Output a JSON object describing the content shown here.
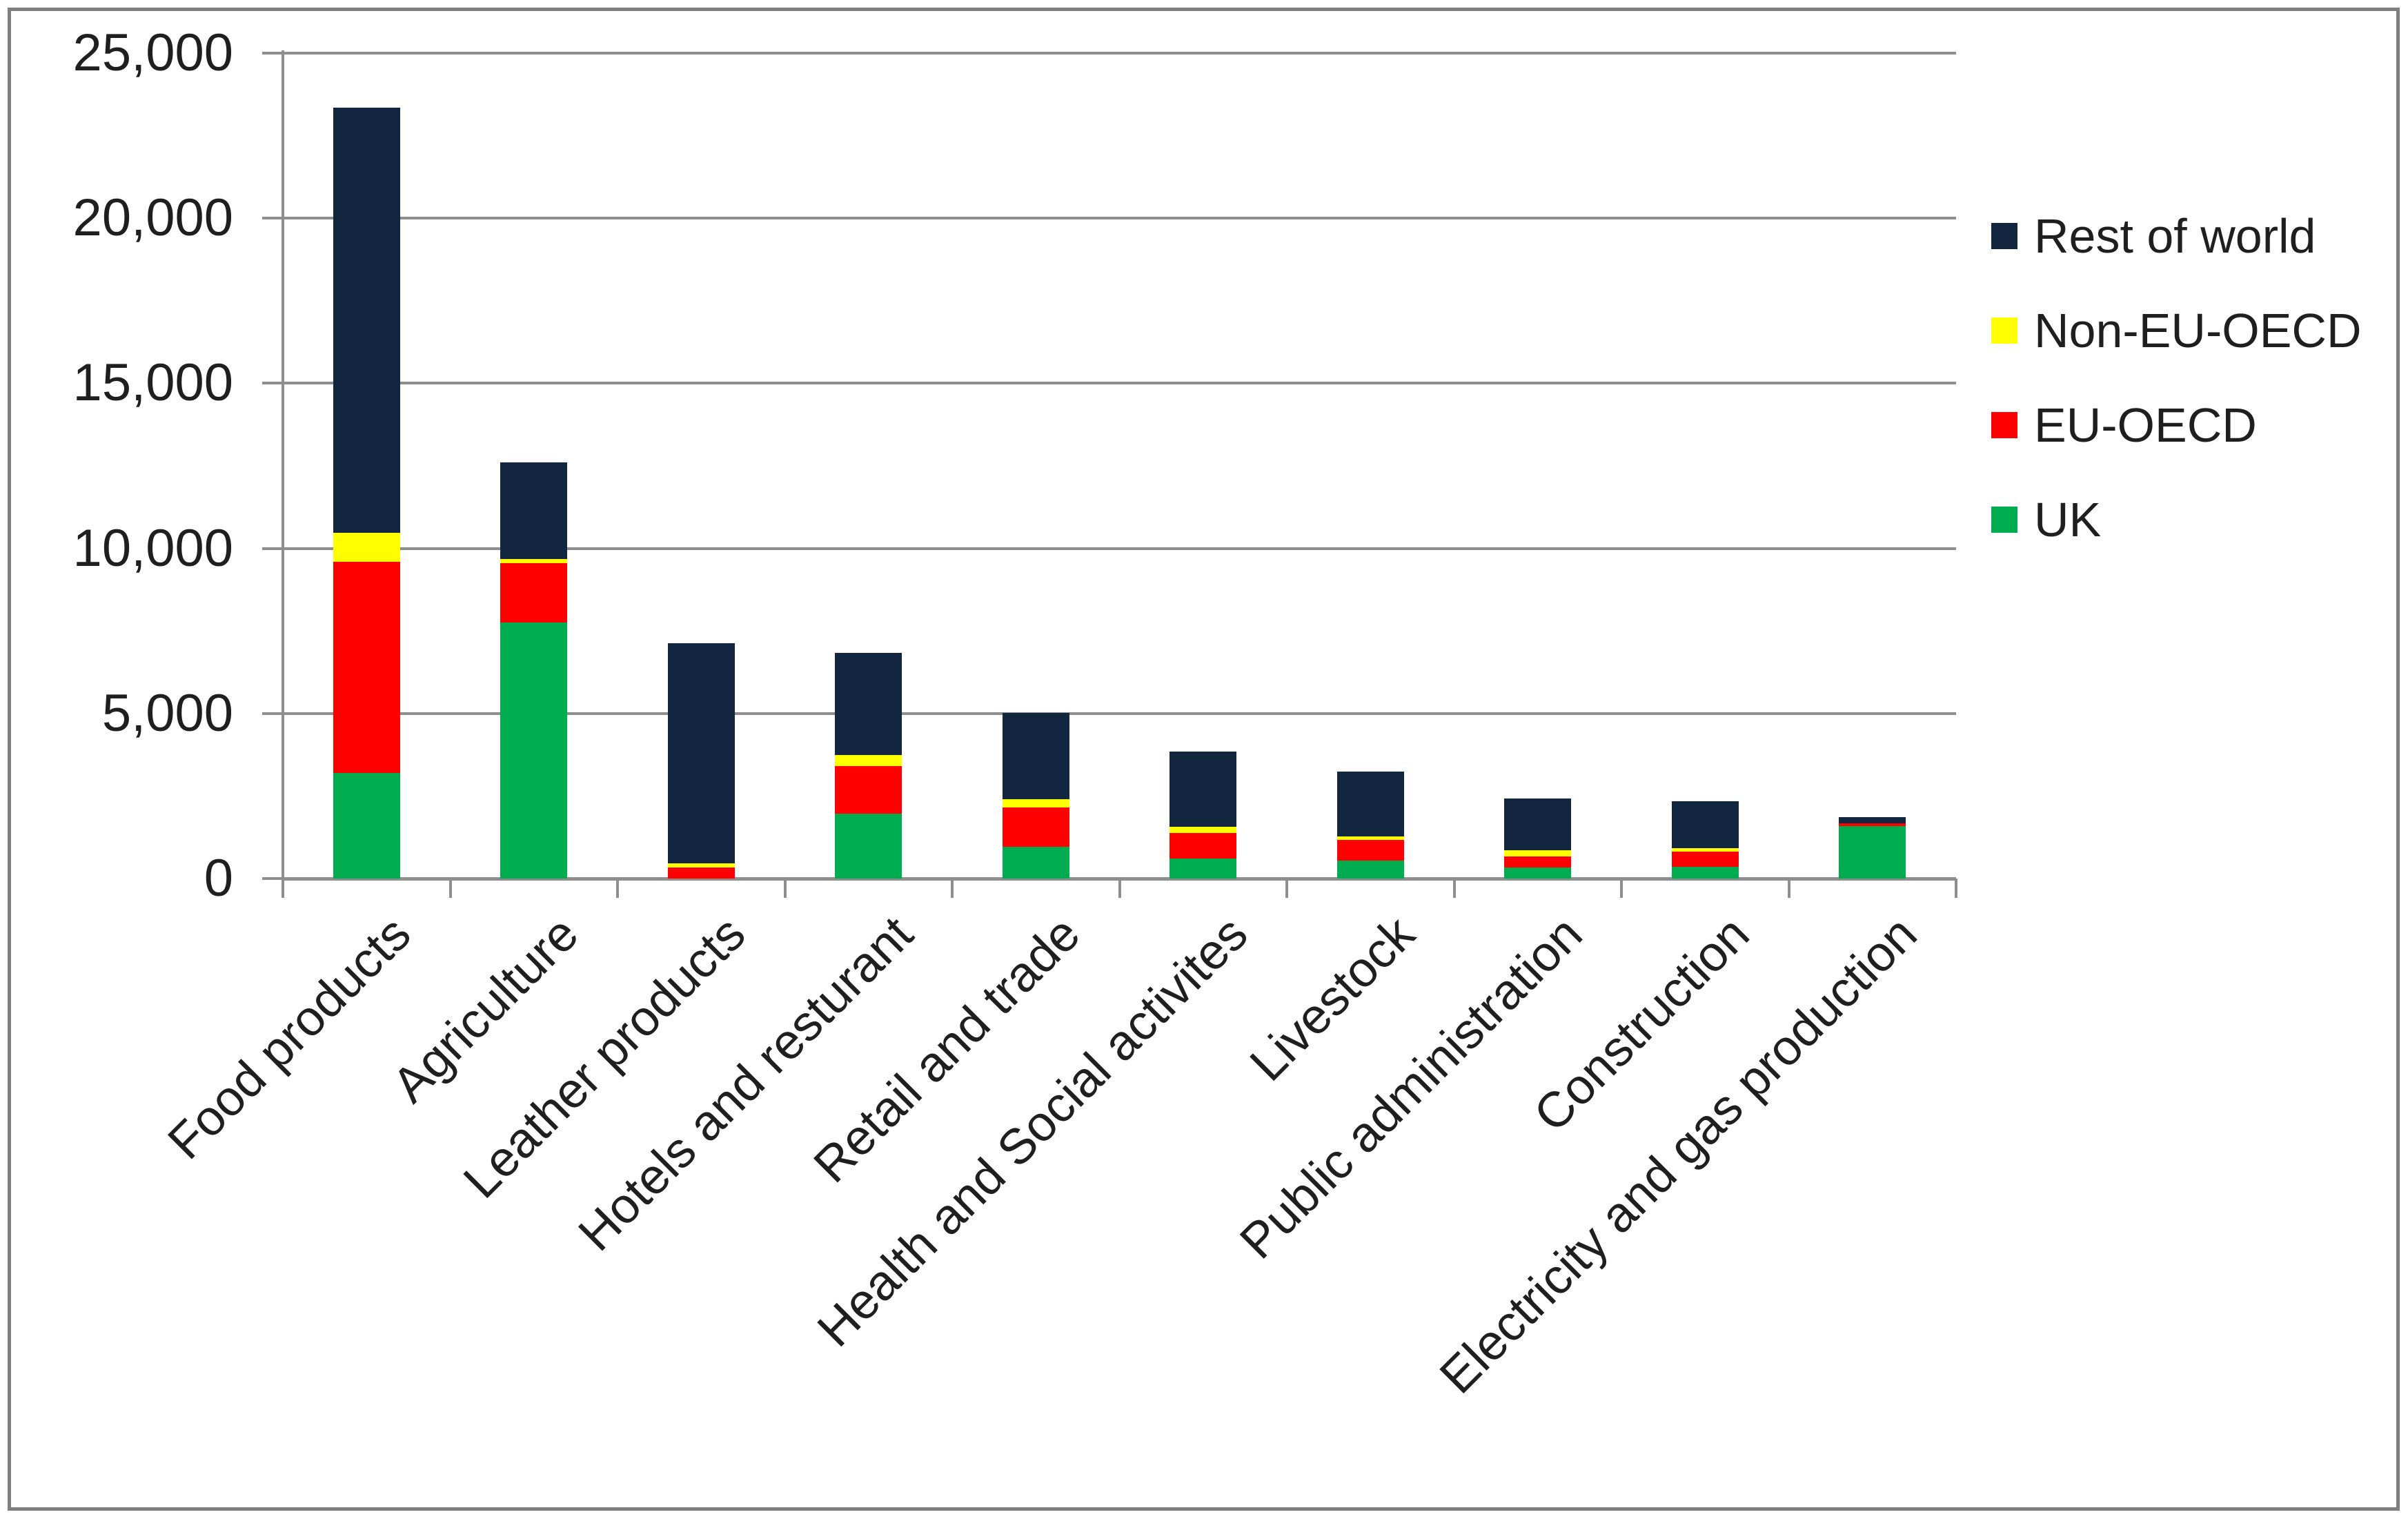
{
  "chart_data": {
    "type": "bar",
    "stacked": true,
    "title": "",
    "xlabel": "",
    "ylabel": "",
    "grid": true,
    "legend_position": "right",
    "categories": [
      "Food products",
      "Agriculture",
      "Leather products",
      "Hotels and resturant",
      "Retail and trade",
      "Health and Social activites",
      "Livestock",
      "Public administration",
      "Construction",
      "Electricity and gas production"
    ],
    "series": [
      {
        "name": "UK",
        "color": "#00AC50",
        "values": [
          3200,
          7750,
          0,
          1970,
          970,
          600,
          550,
          340,
          360,
          1590
        ]
      },
      {
        "name": "EU-OECD",
        "color": "#FF0000",
        "values": [
          6400,
          1800,
          330,
          1430,
          1180,
          770,
          620,
          330,
          460,
          80
        ]
      },
      {
        "name": "Non-EU-OECD",
        "color": "#FFFF00",
        "values": [
          880,
          120,
          140,
          350,
          250,
          190,
          110,
          180,
          100,
          0
        ]
      },
      {
        "name": "Rest of world",
        "color": "#13263F",
        "values": [
          12860,
          2930,
          6660,
          3090,
          2610,
          2280,
          1960,
          1570,
          1430,
          190
        ]
      }
    ],
    "legend": [
      "Rest of world",
      "Non-EU-OECD",
      "EU-OECD",
      "UK"
    ],
    "y_axis": {
      "min": 0,
      "max": 25000,
      "step": 5000,
      "tick_labels": [
        "0",
        "5,000",
        "10,000",
        "15,000",
        "20,000",
        "25,000"
      ]
    }
  },
  "style_colors": {
    "gridline": "#8E8E8E",
    "frame_border": "#7F7F7F",
    "text": "#1f1f1f",
    "background": "#FFFFFF"
  }
}
